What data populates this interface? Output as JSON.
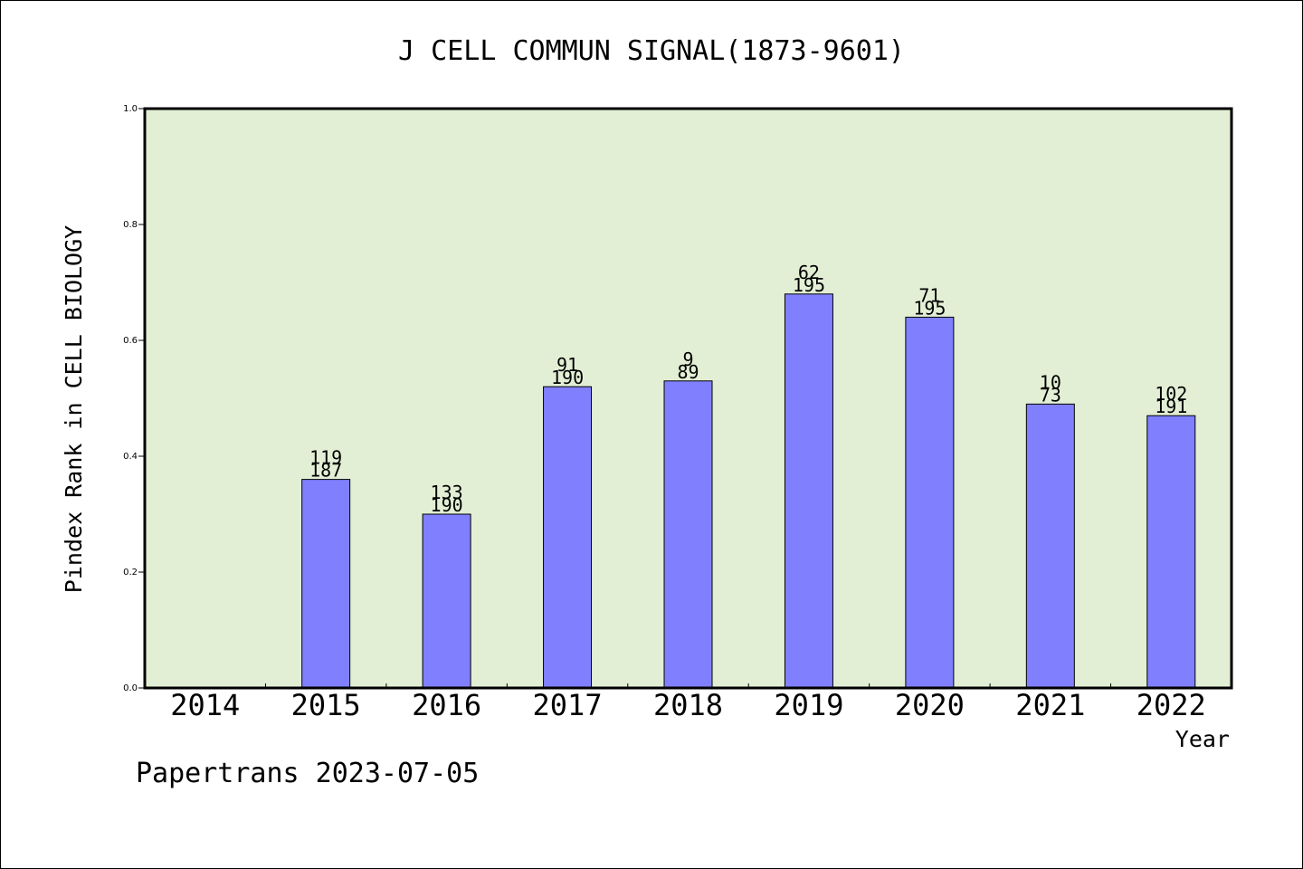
{
  "chart_data": {
    "type": "bar",
    "title": "J CELL COMMUN SIGNAL(1873-9601)",
    "xlabel": "Year",
    "ylabel": "Pindex Rank in CELL BIOLOGY",
    "ylim": [
      0,
      1.0
    ],
    "yticks": [
      "0.0",
      "0.2",
      "0.4",
      "0.6",
      "0.8",
      "1.0"
    ],
    "categories": [
      "2014",
      "2015",
      "2016",
      "2017",
      "2018",
      "2019",
      "2020",
      "2021",
      "2022"
    ],
    "values": [
      null,
      0.36,
      0.3,
      0.52,
      0.53,
      0.68,
      0.64,
      0.49,
      0.47
    ],
    "rank_labels": [
      "",
      "119",
      "133",
      "91",
      "9",
      "62",
      "71",
      "10",
      "102"
    ],
    "total_labels": [
      "",
      "187",
      "190",
      "190",
      "89",
      "195",
      "195",
      "73",
      "191"
    ],
    "grid": false,
    "colors": {
      "plot_bg": "#e2efd5",
      "bar": "#8080ff"
    }
  },
  "footer": {
    "credit": "Papertrans 2023-07-05"
  }
}
